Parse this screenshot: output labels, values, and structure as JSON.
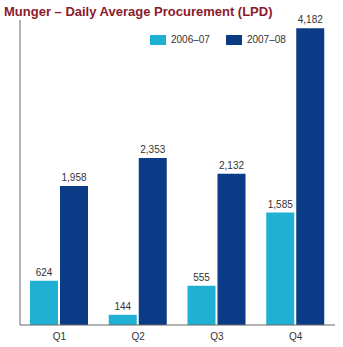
{
  "chart_data": {
    "type": "bar",
    "title": "Munger – Daily Average Procurement (LPD)",
    "categories": [
      "Q1",
      "Q2",
      "Q3",
      "Q4"
    ],
    "series": [
      {
        "name": "2006–07",
        "color": "#1fb0d3",
        "values": [
          624,
          144,
          555,
          1585
        ],
        "value_labels": [
          "624",
          "144",
          "555",
          "1,585"
        ]
      },
      {
        "name": "2007–08",
        "color": "#0b3a86",
        "values": [
          1958,
          2353,
          2132,
          4182
        ],
        "value_labels": [
          "1,958",
          "2,353",
          "2,132",
          "4,182"
        ]
      }
    ],
    "ylim": [
      0,
      4300
    ],
    "grid": false,
    "data_labels": true,
    "tick_labels": "x",
    "legend": "top"
  }
}
